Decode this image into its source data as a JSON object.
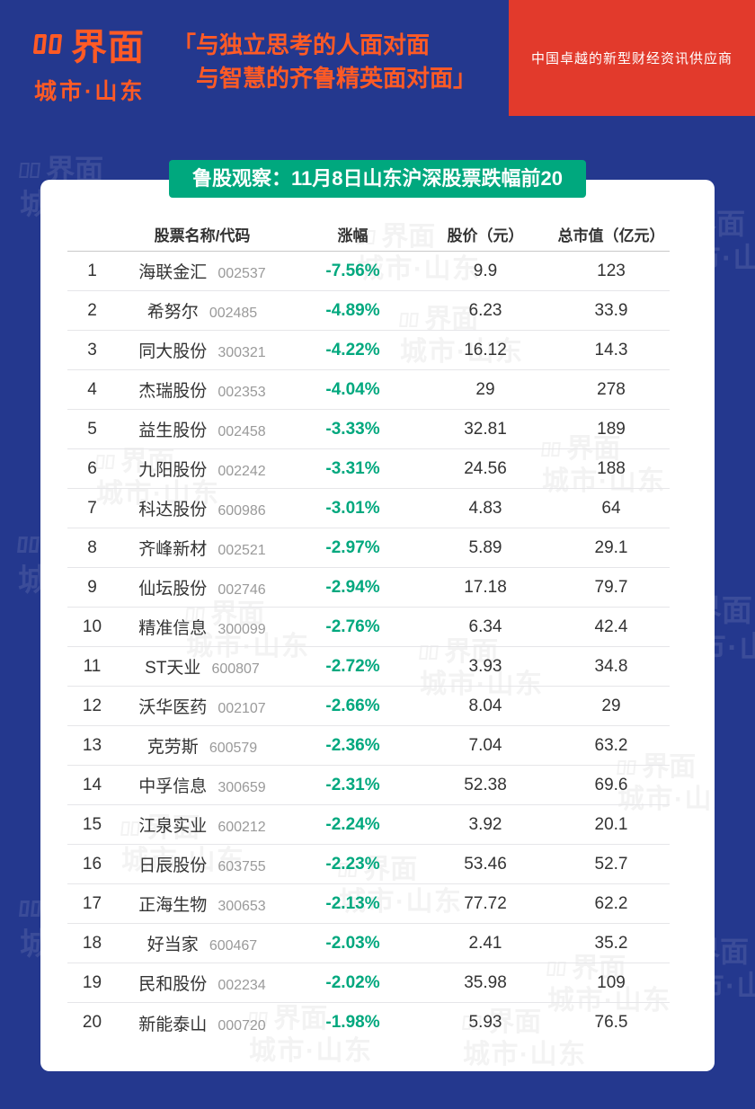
{
  "header": {
    "logo_brand": "界面",
    "logo_sub": "城市·山东",
    "quote_line1": "「与独立思考的人面对面",
    "quote_line2": "与智慧的齐鲁精英面对面」",
    "tagline": "中国卓越的新型财经资讯供应商"
  },
  "watermark": {
    "line1": "界面",
    "line2": "城市·山东"
  },
  "colors": {
    "background_blue": "#24388E",
    "brand_red": "#E23A2C",
    "brand_orange": "#FF5A25",
    "accent_green": "#00A87E",
    "text_dark": "#333333",
    "code_gray": "#9A9A9A"
  },
  "chart_data": {
    "type": "table",
    "title": "鲁股观察：11月8日山东沪深股票跌幅前20",
    "headers": [
      "股票名称/代码",
      "涨幅",
      "股价（元）",
      "总市值（亿元）"
    ],
    "rows": [
      {
        "rank": "1",
        "name": "海联金汇",
        "code": "002537",
        "change": "-7.56%",
        "price": "9.9",
        "cap": "123"
      },
      {
        "rank": "2",
        "name": "希努尔",
        "code": "002485",
        "change": "-4.89%",
        "price": "6.23",
        "cap": "33.9"
      },
      {
        "rank": "3",
        "name": "同大股份",
        "code": "300321",
        "change": "-4.22%",
        "price": "16.12",
        "cap": "14.3"
      },
      {
        "rank": "4",
        "name": "杰瑞股份",
        "code": "002353",
        "change": "-4.04%",
        "price": "29",
        "cap": "278"
      },
      {
        "rank": "5",
        "name": "益生股份",
        "code": "002458",
        "change": "-3.33%",
        "price": "32.81",
        "cap": "189"
      },
      {
        "rank": "6",
        "name": "九阳股份",
        "code": "002242",
        "change": "-3.31%",
        "price": "24.56",
        "cap": "188"
      },
      {
        "rank": "7",
        "name": "科达股份",
        "code": "600986",
        "change": "-3.01%",
        "price": "4.83",
        "cap": "64"
      },
      {
        "rank": "8",
        "name": "齐峰新材",
        "code": "002521",
        "change": "-2.97%",
        "price": "5.89",
        "cap": "29.1"
      },
      {
        "rank": "9",
        "name": "仙坛股份",
        "code": "002746",
        "change": "-2.94%",
        "price": "17.18",
        "cap": "79.7"
      },
      {
        "rank": "10",
        "name": "精准信息",
        "code": "300099",
        "change": "-2.76%",
        "price": "6.34",
        "cap": "42.4"
      },
      {
        "rank": "11",
        "name": "ST天业",
        "code": "600807",
        "change": "-2.72%",
        "price": "3.93",
        "cap": "34.8"
      },
      {
        "rank": "12",
        "name": "沃华医药",
        "code": "002107",
        "change": "-2.66%",
        "price": "8.04",
        "cap": "29"
      },
      {
        "rank": "13",
        "name": "克劳斯",
        "code": "600579",
        "change": "-2.36%",
        "price": "7.04",
        "cap": "63.2"
      },
      {
        "rank": "14",
        "name": "中孚信息",
        "code": "300659",
        "change": "-2.31%",
        "price": "52.38",
        "cap": "69.6"
      },
      {
        "rank": "15",
        "name": "江泉实业",
        "code": "600212",
        "change": "-2.24%",
        "price": "3.92",
        "cap": "20.1"
      },
      {
        "rank": "16",
        "name": "日辰股份",
        "code": "603755",
        "change": "-2.23%",
        "price": "53.46",
        "cap": "52.7"
      },
      {
        "rank": "17",
        "name": "正海生物",
        "code": "300653",
        "change": "-2.13%",
        "price": "77.72",
        "cap": "62.2"
      },
      {
        "rank": "18",
        "name": "好当家",
        "code": "600467",
        "change": "-2.03%",
        "price": "2.41",
        "cap": "35.2"
      },
      {
        "rank": "19",
        "name": "民和股份",
        "code": "002234",
        "change": "-2.02%",
        "price": "35.98",
        "cap": "109"
      },
      {
        "rank": "20",
        "name": "新能泰山",
        "code": "000720",
        "change": "-1.98%",
        "price": "5.93",
        "cap": "76.5"
      }
    ]
  }
}
